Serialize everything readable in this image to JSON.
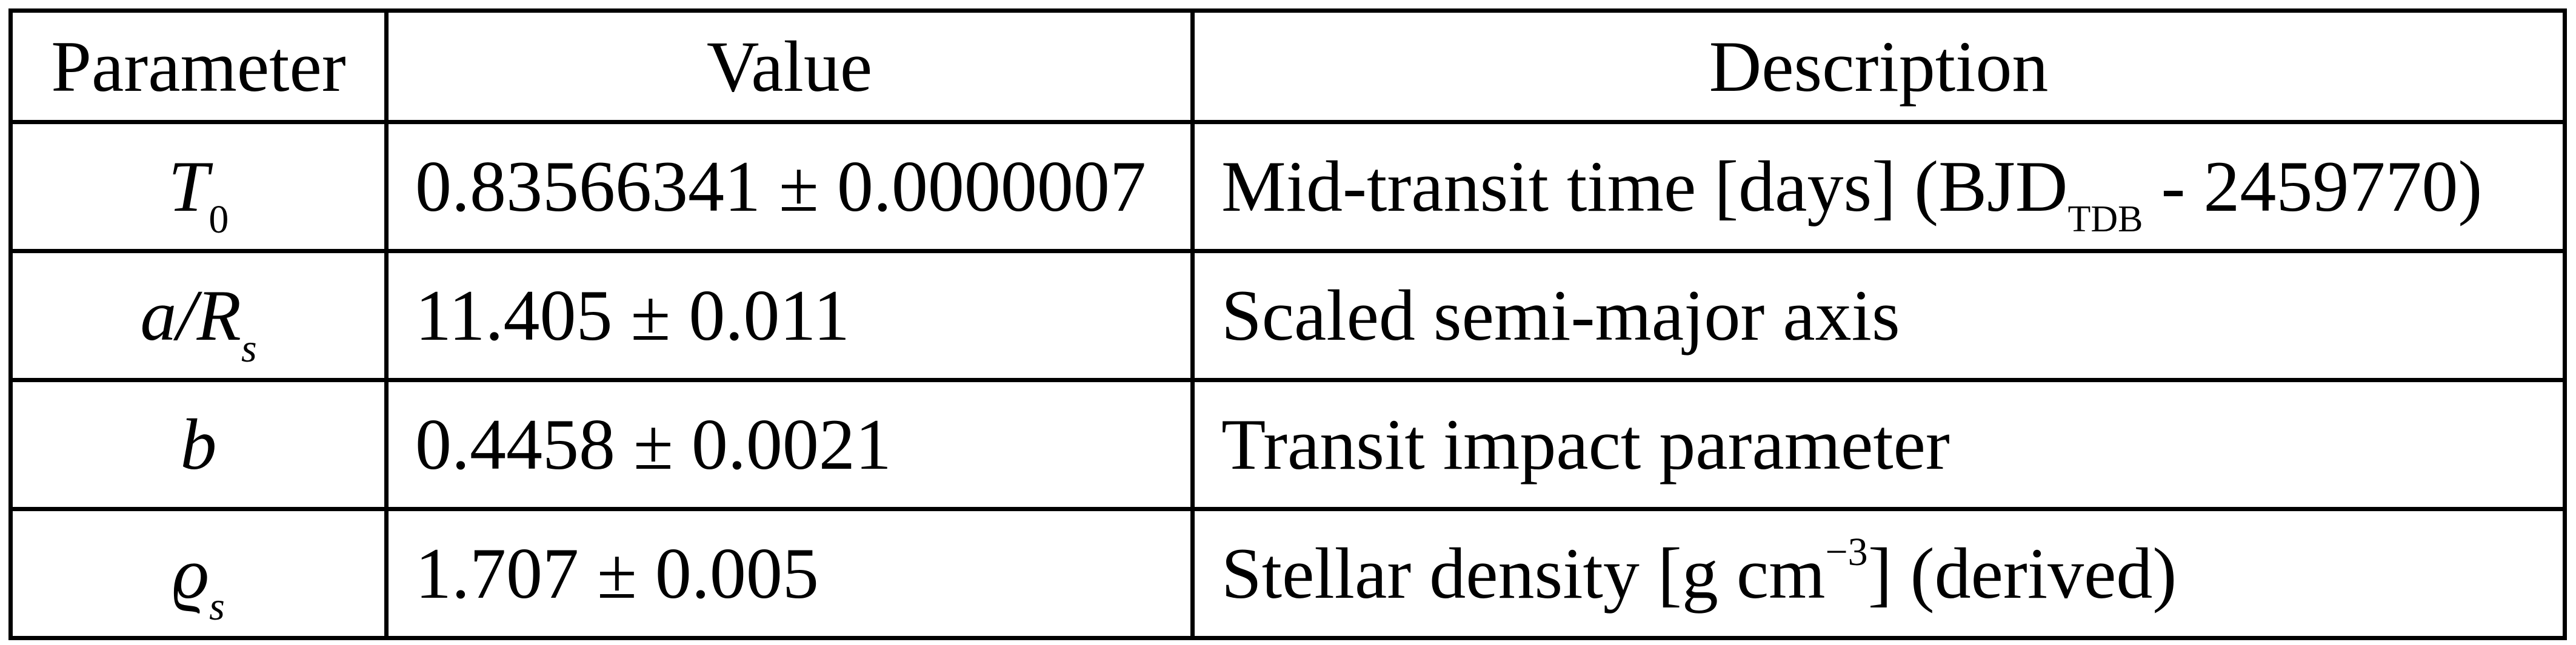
{
  "table": {
    "headers": {
      "parameter": "Parameter",
      "value": "Value",
      "description": "Description"
    },
    "rows": [
      {
        "symbol": "T",
        "symbol_sub": "0",
        "value": "0.83566341 ± 0.0000007",
        "description_main": "Mid-transit time [days] (BJD",
        "description_sub": "TDB",
        "description_tail": " - 2459770)"
      },
      {
        "symbol": "a/R",
        "symbol_sub": "s",
        "value": "11.405 ± 0.011",
        "description": "Scaled semi-major axis"
      },
      {
        "symbol": "b",
        "value": "0.4458 ± 0.0021",
        "description": "Transit impact parameter"
      },
      {
        "symbol": "ϱ",
        "symbol_sub": "s",
        "value": "1.707 ± 0.005",
        "description_main": "Stellar density [g cm",
        "description_sup": "−3",
        "description_tail": "] (derived)"
      }
    ]
  }
}
